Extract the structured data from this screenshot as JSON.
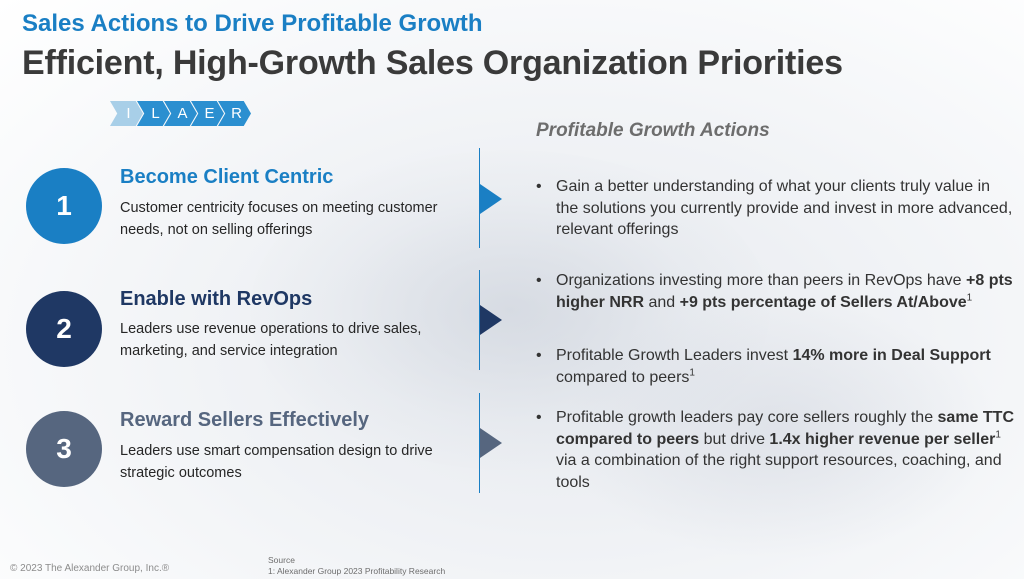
{
  "header": {
    "kicker": "Sales Actions to Drive Profitable Growth",
    "title": "Efficient, High-Growth Sales Organization Priorities"
  },
  "ilaer": [
    "I",
    "L",
    "A",
    "E",
    "R"
  ],
  "actions_heading": "Profitable Growth Actions",
  "priorities": [
    {
      "number": "1",
      "title": "Become Client Centric",
      "description": "Customer centricity focuses on meeting customer needs, not on selling offerings"
    },
    {
      "number": "2",
      "title": "Enable with RevOps",
      "description": "Leaders use revenue operations to drive sales, marketing, and service integration"
    },
    {
      "number": "3",
      "title": "Reward Sellers Effectively",
      "description": "Leaders use smart compensation design to drive strategic outcomes"
    }
  ],
  "bullets": {
    "b1": {
      "t1": "Gain a better understanding of what your clients truly value in the solutions you currently provide and invest in more advanced, relevant offerings"
    },
    "b2": {
      "t1": "Organizations investing more than peers in RevOps have ",
      "s1": "+8 pts higher NRR",
      "t2": " and ",
      "s2": "+9 pts percentage of Sellers At/Above",
      "sup": "1"
    },
    "b3": {
      "t1": "Profitable Growth Leaders invest ",
      "s1": "14% more in Deal Support",
      "t2": " compared to peers",
      "sup": "1"
    },
    "b4": {
      "t1": "Profitable growth leaders pay core sellers roughly the ",
      "s1": "same TTC compared to peers",
      "t2": " but drive ",
      "s2": "1.4x higher revenue per seller",
      "sup": "1",
      "t3": " via a combination of the right support resources, coaching, and tools"
    }
  },
  "footer": {
    "copyright": "© 2023 The Alexander Group, Inc.®",
    "source_label": "Source",
    "source_text": "1: Alexander Group 2023 Profitability Research"
  },
  "colors": {
    "brand_blue": "#1a7fc4",
    "navy": "#1f3864",
    "slate": "#56667f",
    "title_gray": "#3a3a3a"
  }
}
